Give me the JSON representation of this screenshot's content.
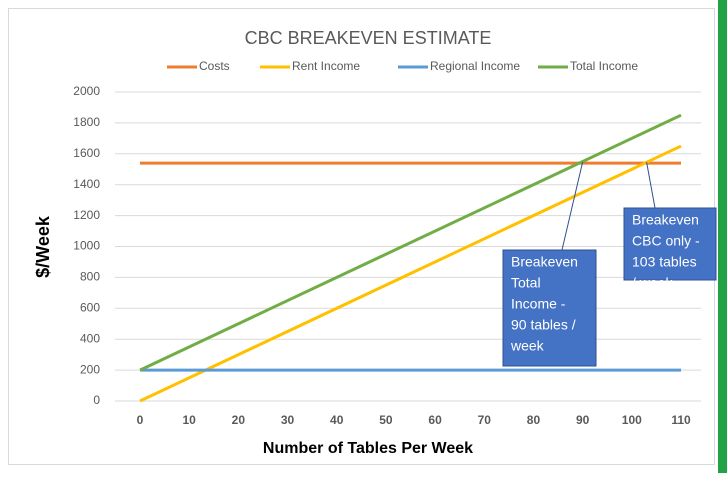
{
  "chart_data": {
    "type": "line",
    "title": "CBC BREAKEVEN ESTIMATE",
    "x_label": "Number of Tables Per Week",
    "y_label": "$/Week",
    "x": [
      0,
      110
    ],
    "series": [
      {
        "name": "Costs",
        "color": "#ED7D31",
        "values": [
          1540,
          1540
        ]
      },
      {
        "name": "Rent Income",
        "color": "#FFC000",
        "values": [
          0,
          1650
        ]
      },
      {
        "name": "Regional Income",
        "color": "#5B9BD5",
        "values": [
          200,
          200
        ]
      },
      {
        "name": "Total Income",
        "color": "#70AD47",
        "values": [
          200,
          1850
        ]
      }
    ],
    "xlim": [
      0,
      110
    ],
    "xticks": [
      0,
      10,
      20,
      30,
      40,
      50,
      60,
      70,
      80,
      90,
      100,
      110
    ],
    "ylim": [
      0,
      2000
    ],
    "yticks": [
      0,
      200,
      400,
      600,
      800,
      1000,
      1200,
      1400,
      1600,
      1800,
      2000
    ],
    "grid": true,
    "legend": "top",
    "annotations": [
      {
        "lines": [
          "Breakeven",
          "Total",
          "Income -",
          "90 tables /",
          "week"
        ],
        "x": 90
      },
      {
        "lines": [
          "Breakeven",
          "CBC only -",
          "103 tables",
          "/ week"
        ],
        "x": 103
      }
    ]
  }
}
